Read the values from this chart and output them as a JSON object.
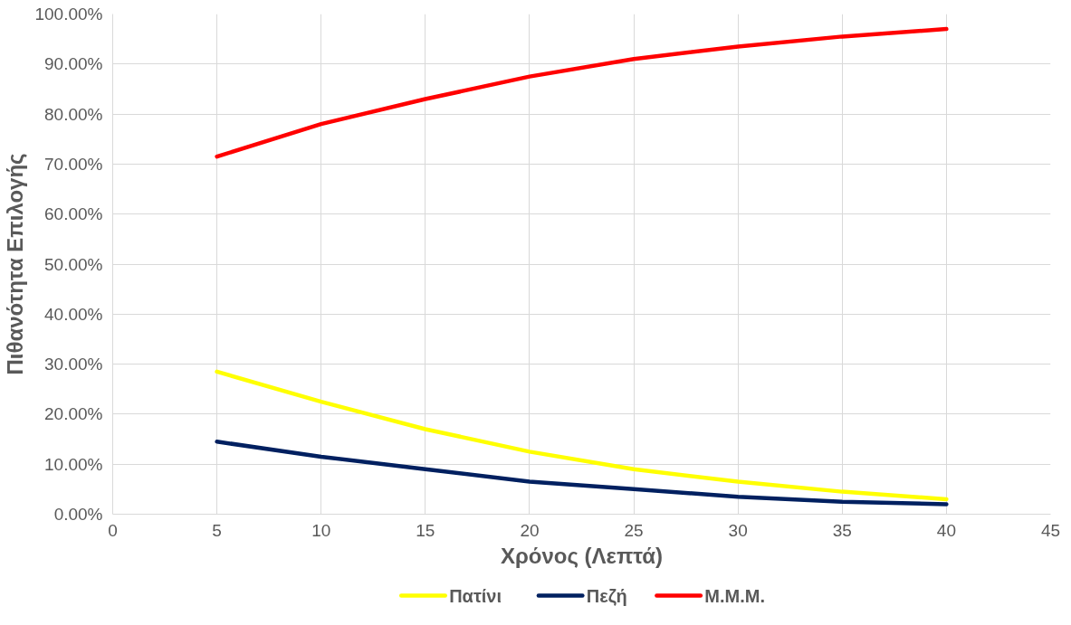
{
  "chart_data": {
    "type": "line",
    "xlabel": "Χρόνος (Λεπτά)",
    "ylabel": "Πιθανότητα Επιλογής",
    "x": [
      5,
      10,
      15,
      20,
      25,
      30,
      35,
      40
    ],
    "series": [
      {
        "name": "Πατίνι",
        "color": "#ffff00",
        "values": [
          28.5,
          22.5,
          17,
          12.5,
          9,
          6.5,
          4.5,
          3
        ]
      },
      {
        "name": "Πεζή",
        "color": "#002060",
        "values": [
          14.5,
          11.5,
          9,
          6.5,
          5,
          3.5,
          2.5,
          2
        ]
      },
      {
        "name": "Μ.Μ.Μ.",
        "color": "#ff0000",
        "values": [
          71.5,
          78,
          83,
          87.5,
          91,
          93.5,
          95.5,
          97
        ]
      }
    ],
    "xlim": [
      0,
      45
    ],
    "xticks": [
      0,
      5,
      10,
      15,
      20,
      25,
      30,
      35,
      40,
      45
    ],
    "ylim": [
      0,
      100
    ],
    "yticks": [
      {
        "value": 0,
        "label": "0.00%"
      },
      {
        "value": 10,
        "label": "10.00%"
      },
      {
        "value": 20,
        "label": "20.00%"
      },
      {
        "value": 30,
        "label": "30.00%"
      },
      {
        "value": 40,
        "label": "40.00%"
      },
      {
        "value": 50,
        "label": "50.00%"
      },
      {
        "value": 60,
        "label": "60.00%"
      },
      {
        "value": 70,
        "label": "70.00%"
      },
      {
        "value": 80,
        "label": "80.00%"
      },
      {
        "value": 90,
        "label": "90.00%"
      },
      {
        "value": 100,
        "label": "100.00%"
      }
    ],
    "grid": true,
    "legend": "bottom",
    "marker": "none",
    "line_style": "solid"
  }
}
